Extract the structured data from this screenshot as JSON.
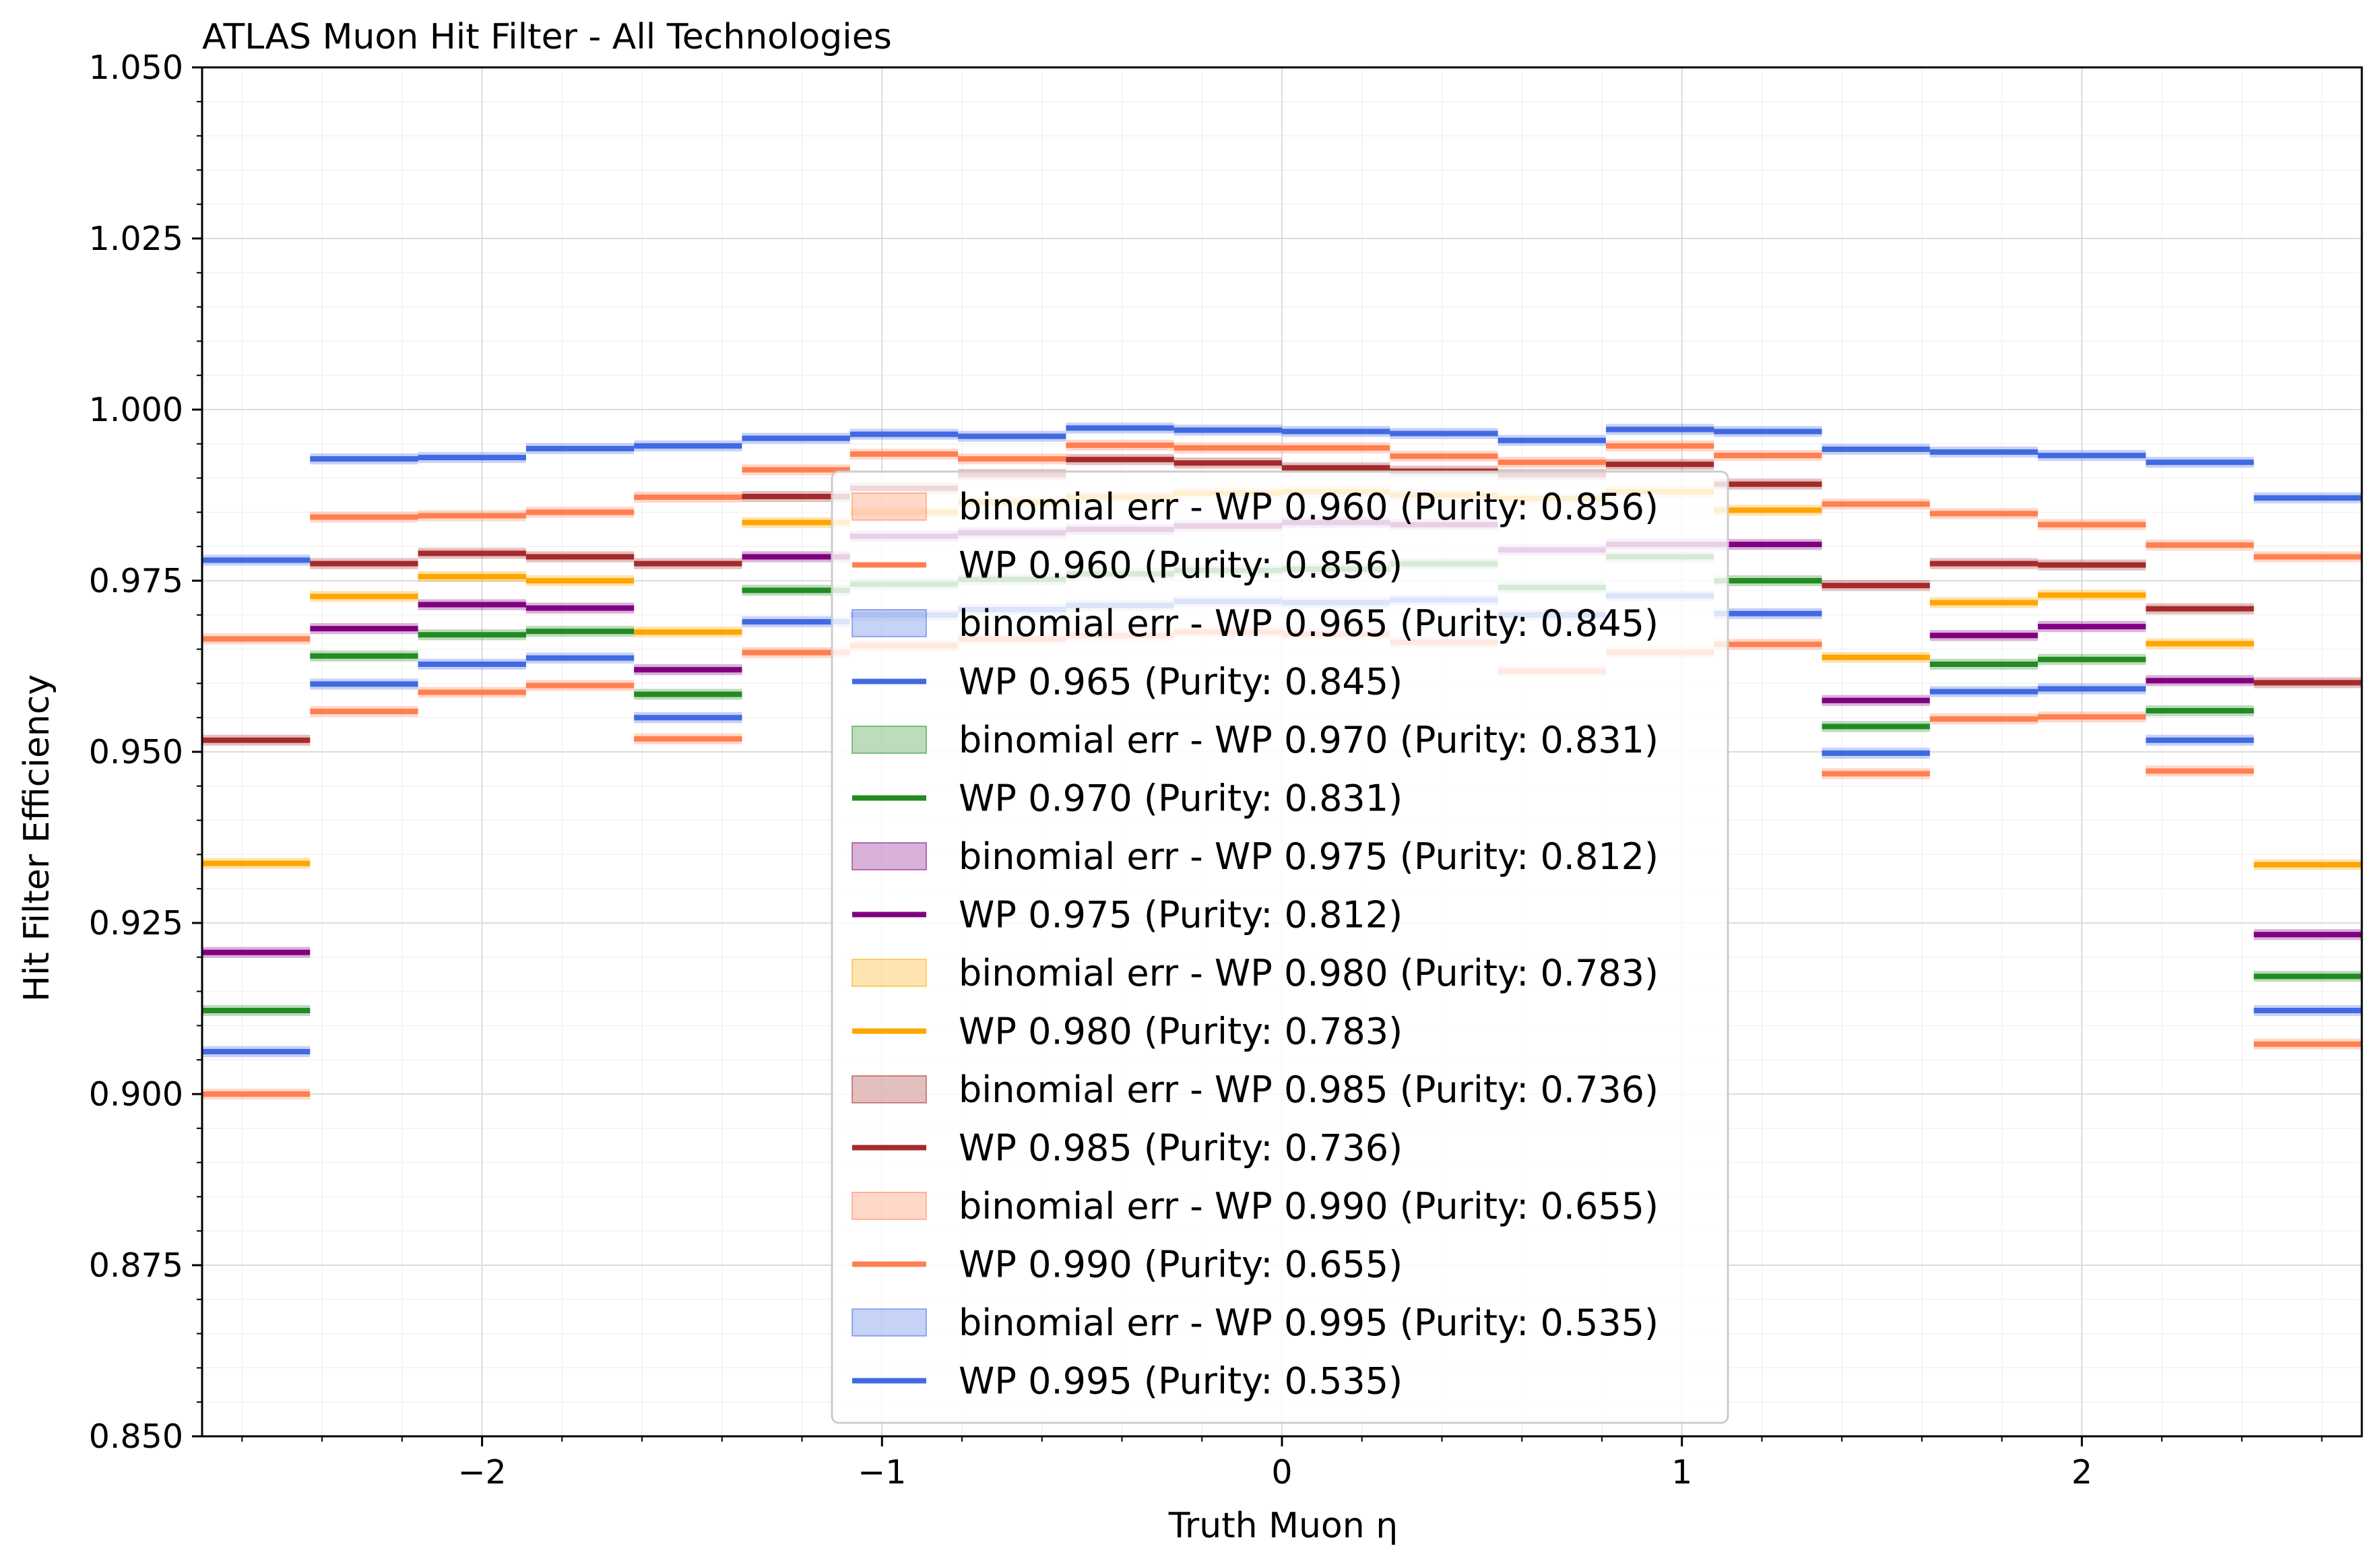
{
  "chart_data": {
    "type": "line",
    "title": "ATLAS Muon Hit Filter - All Technologies",
    "xlabel": "Truth Muon η",
    "ylabel": "Hit Filter Efficiency",
    "xlim": [
      -2.7,
      2.7
    ],
    "ylim": [
      0.85,
      1.05
    ],
    "x_ticks": [
      -2,
      -1,
      0,
      1,
      2
    ],
    "x_tick_labels": [
      "−2",
      "−1",
      "0",
      "1",
      "2"
    ],
    "y_ticks": [
      0.85,
      0.875,
      0.9,
      0.925,
      0.95,
      0.975,
      1.0,
      1.025,
      1.05
    ],
    "y_tick_labels": [
      "0.850",
      "0.875",
      "0.900",
      "0.925",
      "0.950",
      "0.975",
      "1.000",
      "1.025",
      "1.050"
    ],
    "grid": true,
    "bin_edges": [
      -2.7,
      -2.43,
      -2.16,
      -1.89,
      -1.62,
      -1.35,
      -1.08,
      -0.81,
      -0.54,
      -0.27,
      0.0,
      0.27,
      0.54,
      0.81,
      1.08,
      1.35,
      1.62,
      1.89,
      2.16,
      2.43,
      2.7
    ],
    "legend_position": "lower center",
    "legend": [
      "binomial err - WP 0.960 (Purity: 0.856)",
      "WP 0.960 (Purity: 0.856)",
      "binomial err - WP 0.965 (Purity: 0.845)",
      "WP 0.965 (Purity: 0.845)",
      "binomial err - WP 0.970 (Purity: 0.831)",
      "WP 0.970 (Purity: 0.831)",
      "binomial err - WP 0.975 (Purity: 0.812)",
      "WP 0.975 (Purity: 0.812)",
      "binomial err - WP 0.980 (Purity: 0.783)",
      "WP 0.980 (Purity: 0.783)",
      "binomial err - WP 0.985 (Purity: 0.736)",
      "WP 0.985 (Purity: 0.736)",
      "binomial err - WP 0.990 (Purity: 0.655)",
      "WP 0.990 (Purity: 0.655)",
      "binomial err - WP 0.995 (Purity: 0.535)",
      "WP 0.995 (Purity: 0.535)"
    ],
    "series": [
      {
        "name": "WP 0.960 (Purity: 0.856)",
        "color": "#ff7f50",
        "err": 0.0008,
        "values": [
          0.9,
          0.9559,
          0.9587,
          0.9597,
          0.9519,
          0.9645,
          0.9655,
          0.9665,
          0.967,
          0.9675,
          0.9672,
          0.966,
          0.9618,
          0.9645,
          0.9657,
          0.9468,
          0.9548,
          0.9551,
          0.9472,
          0.9073
        ]
      },
      {
        "name": "WP 0.965 (Purity: 0.845)",
        "color": "#4169e1",
        "err": 0.0008,
        "values": [
          0.9062,
          0.9599,
          0.9628,
          0.9637,
          0.955,
          0.969,
          0.97,
          0.9708,
          0.9714,
          0.972,
          0.9718,
          0.9722,
          0.97,
          0.9728,
          0.9702,
          0.9498,
          0.9588,
          0.9592,
          0.9517,
          0.9122
        ]
      },
      {
        "name": "WP 0.970 (Purity: 0.831)",
        "color": "#228b22",
        "err": 0.0008,
        "values": [
          0.9122,
          0.964,
          0.9671,
          0.9676,
          0.9584,
          0.9736,
          0.9745,
          0.9752,
          0.976,
          0.9765,
          0.9767,
          0.9775,
          0.974,
          0.9785,
          0.975,
          0.9537,
          0.9628,
          0.9635,
          0.956,
          0.9172
        ]
      },
      {
        "name": "WP 0.975 (Purity: 0.812)",
        "color": "#800080",
        "err": 0.0008,
        "values": [
          0.9207,
          0.968,
          0.9715,
          0.971,
          0.962,
          0.9785,
          0.9815,
          0.982,
          0.9825,
          0.983,
          0.9835,
          0.9832,
          0.9795,
          0.9803,
          0.9803,
          0.9575,
          0.967,
          0.9683,
          0.9604,
          0.9233
        ]
      },
      {
        "name": "WP 0.980 (Purity: 0.783)",
        "color": "#ffa500",
        "err": 0.0008,
        "values": [
          0.9337,
          0.9727,
          0.9756,
          0.975,
          0.9675,
          0.9835,
          0.985,
          0.9865,
          0.9872,
          0.9878,
          0.988,
          0.9875,
          0.987,
          0.988,
          0.9853,
          0.9638,
          0.9718,
          0.9729,
          0.9658,
          0.9335
        ]
      },
      {
        "name": "WP 0.985 (Purity: 0.736)",
        "color": "#a52a2a",
        "err": 0.0008,
        "values": [
          0.9517,
          0.9775,
          0.979,
          0.9785,
          0.9775,
          0.9873,
          0.9885,
          0.9905,
          0.9927,
          0.9922,
          0.9915,
          0.991,
          0.9905,
          0.992,
          0.9891,
          0.9743,
          0.9775,
          0.9773,
          0.9709,
          0.9601
        ]
      },
      {
        "name": "WP 0.990 (Purity: 0.655)",
        "color": "#ff7f50",
        "err": 0.0008,
        "values": [
          0.9665,
          0.9843,
          0.9845,
          0.985,
          0.9872,
          0.9912,
          0.9935,
          0.9928,
          0.9948,
          0.9944,
          0.9944,
          0.9932,
          0.9923,
          0.9947,
          0.9933,
          0.9862,
          0.9848,
          0.9832,
          0.9802,
          0.9785
        ]
      },
      {
        "name": "WP 0.995 (Purity: 0.535)",
        "color": "#4169e1",
        "err": 0.0008,
        "values": [
          0.978,
          0.9928,
          0.993,
          0.9943,
          0.9947,
          0.9958,
          0.9964,
          0.9961,
          0.9973,
          0.997,
          0.9968,
          0.9965,
          0.9955,
          0.9971,
          0.9968,
          0.9942,
          0.9938,
          0.9933,
          0.9923,
          0.9871
        ]
      }
    ]
  }
}
